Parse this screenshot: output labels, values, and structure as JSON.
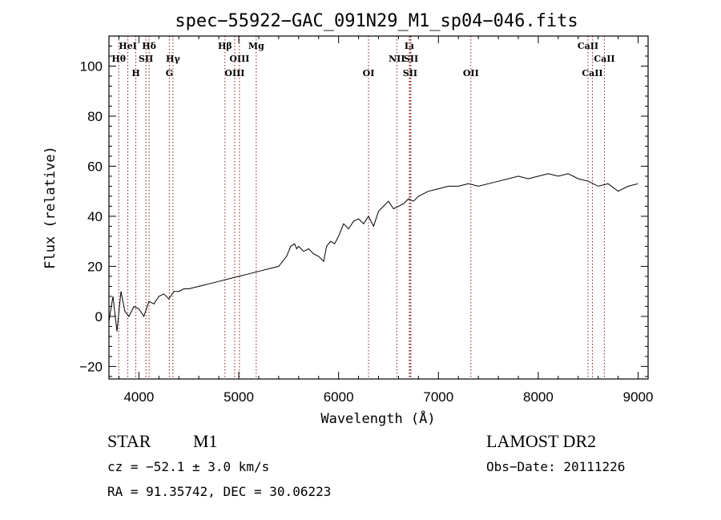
{
  "chart_data": {
    "type": "line",
    "title": "spec−55922−GAC_091N29_M1_sp04−046.fits",
    "xlabel": "Wavelength (Å)",
    "ylabel": "Flux (relative)",
    "xlim": [
      3700,
      9100
    ],
    "ylim": [
      -25,
      112
    ],
    "x_ticks": [
      4000,
      5000,
      6000,
      7000,
      8000,
      9000
    ],
    "x_tick_labels": [
      "4000",
      "5000",
      "6000",
      "7000",
      "8000",
      "9000"
    ],
    "y_ticks": [
      -20,
      0,
      20,
      40,
      60,
      80,
      100
    ],
    "y_tick_labels": [
      "−20",
      "0",
      "20",
      "40",
      "60",
      "80",
      "100"
    ],
    "grid": false,
    "series": [
      {
        "x": [
          3700,
          3740,
          3780,
          3820,
          3860,
          3900,
          3950,
          4000,
          4050,
          4100,
          4150,
          4200,
          4250,
          4300,
          4350,
          4400,
          4450,
          4500,
          4600,
          4700,
          4800,
          4900,
          5000,
          5100,
          5200,
          5300,
          5400,
          5480,
          5520,
          5560,
          5580,
          5600,
          5650,
          5700,
          5750,
          5800,
          5850,
          5880,
          5920,
          5960,
          6000,
          6050,
          6100,
          6150,
          6200,
          6250,
          6300,
          6350,
          6400,
          6450,
          6500,
          6550,
          6600,
          6650,
          6700,
          6750,
          6800,
          6900,
          7000,
          7100,
          7200,
          7300,
          7400,
          7500,
          7600,
          7700,
          7800,
          7900,
          8000,
          8100,
          8200,
          8300,
          8400,
          8500,
          8600,
          8700,
          8800,
          8900,
          9000
        ],
        "y": [
          -2,
          8,
          -6,
          10,
          2,
          0,
          4,
          3,
          0,
          6,
          5,
          8,
          9,
          7,
          10,
          10,
          11,
          11,
          12,
          13,
          14,
          15,
          16,
          17,
          18,
          19,
          20,
          24,
          28,
          29,
          27,
          28,
          26,
          27,
          25,
          24,
          22,
          28,
          30,
          29,
          32,
          37,
          35,
          38,
          39,
          37,
          40,
          36,
          42,
          44,
          46,
          43,
          44,
          45,
          47,
          46,
          48,
          50,
          51,
          52,
          52,
          53,
          52,
          53,
          54,
          55,
          56,
          55,
          56,
          57,
          56,
          57,
          55,
          54,
          52,
          53,
          50,
          52,
          53
        ]
      }
    ],
    "spectral_lines": [
      {
        "name": "HeΙ",
        "wavelength": 3889,
        "row": 1
      },
      {
        "name": "Hθ",
        "wavelength": 3798,
        "row": 2
      },
      {
        "name": "H",
        "wavelength": 3969,
        "row": 3
      },
      {
        "name": "Hδ",
        "wavelength": 4102,
        "row": 1
      },
      {
        "name": "SΙΙ",
        "wavelength": 4070,
        "row": 2
      },
      {
        "name": "Hγ",
        "wavelength": 4341,
        "row": 2
      },
      {
        "name": "G",
        "wavelength": 4305,
        "row": 3
      },
      {
        "name": "Hβ",
        "wavelength": 4862,
        "row": 1
      },
      {
        "name": "OΙΙΙ",
        "wavelength": 5007,
        "row": 2
      },
      {
        "name": "OΙΙΙ",
        "wavelength": 4959,
        "row": 3
      },
      {
        "name": "Mg",
        "wavelength": 5175,
        "row": 1
      },
      {
        "name": "OΙ",
        "wavelength": 6300,
        "row": 3
      },
      {
        "name": "NΙΙ",
        "wavelength": 6583,
        "row": 2
      },
      {
        "name": "Lı",
        "wavelength": 6708,
        "row": 1
      },
      {
        "name": "SΙΙ",
        "wavelength": 6725,
        "row": 2
      },
      {
        "name": "SΙΙ",
        "wavelength": 6716,
        "row": 3
      },
      {
        "name": "OΙΙ",
        "wavelength": 7325,
        "row": 3
      },
      {
        "name": "CaΙΙ",
        "wavelength": 8498,
        "row": 1
      },
      {
        "name": "CaΙΙ",
        "wavelength": 8662,
        "row": 2
      },
      {
        "name": "CaΙΙ",
        "wavelength": 8542,
        "row": 3
      }
    ],
    "spectral_line_color": "#8b1a1a"
  },
  "info": {
    "object_type": "STAR",
    "subclass": "M1",
    "survey": "LAMOST  DR2",
    "cz": "cz = −52.1 ± 3.0 km/s",
    "obs_date": "Obs−Date: 20111226",
    "coords": "RA =  91.35742, DEC =  30.06223"
  }
}
